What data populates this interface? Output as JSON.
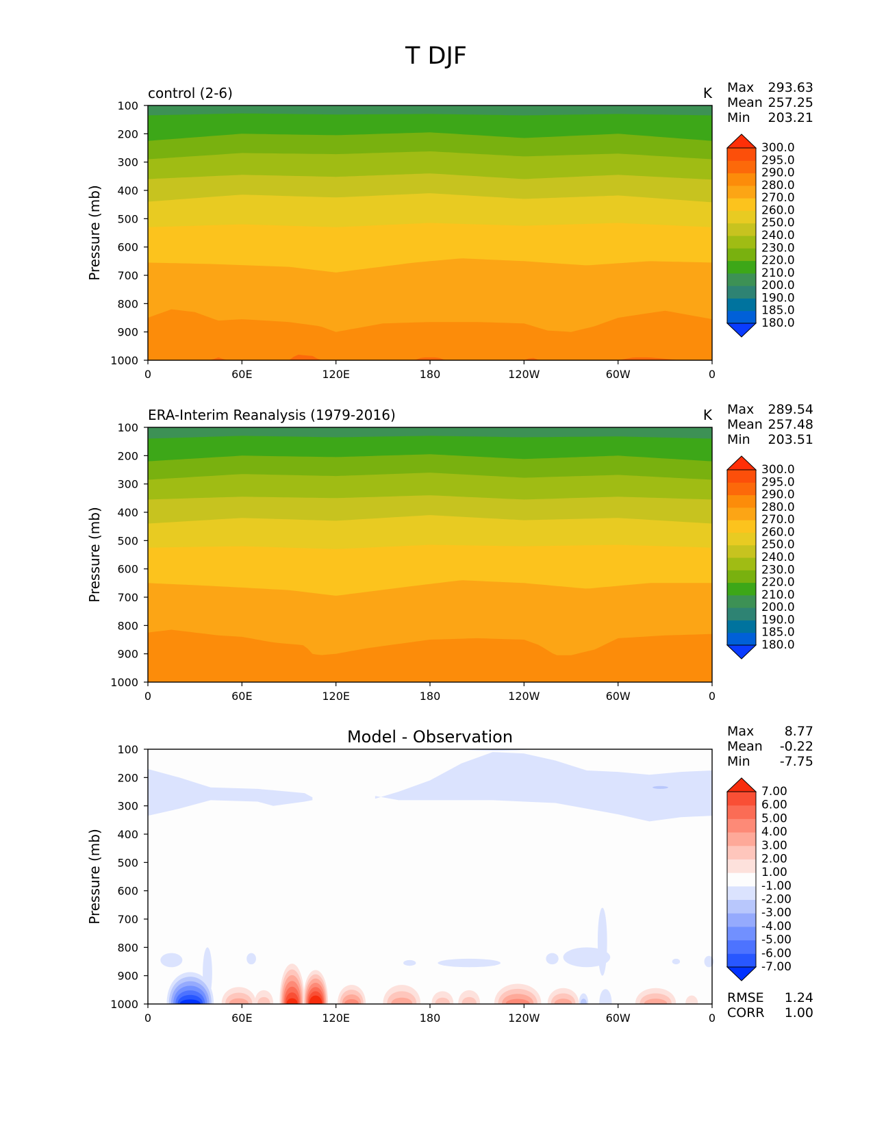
{
  "figure": {
    "title": "T DJF"
  },
  "colors": {
    "abs_levels": [
      "#0a3cfe",
      "#0060d8",
      "#00739e",
      "#2e8373",
      "#3d9155",
      "#3da718",
      "#79b10f",
      "#a0bc14",
      "#c7c31f",
      "#e8cb22",
      "#fcc31d",
      "#fca515",
      "#fc8c0a",
      "#fc690a",
      "#fc4f0a",
      "#ff2f08"
    ],
    "diff_levels": [
      "#0032ff",
      "#2857ff",
      "#4d73ff",
      "#7190ff",
      "#95aafd",
      "#b8c7fc",
      "#dbe3fe",
      "#fdfdfd",
      "#fde1dc",
      "#fec6bc",
      "#fea999",
      "#fd8a77",
      "#fb6c55",
      "#f94f35",
      "#f72c0c"
    ]
  },
  "chart_data": [
    {
      "type": "heatmap",
      "title": "control (2-6)",
      "units": "K",
      "xlabel": "",
      "ylabel": "Pressure (mb)",
      "xticks": [
        "0",
        "60E",
        "120E",
        "180",
        "120W",
        "60W",
        "0"
      ],
      "yticks": [
        "100",
        "200",
        "300",
        "400",
        "500",
        "600",
        "700",
        "800",
        "900",
        "1000"
      ],
      "xlim": [
        0,
        360
      ],
      "ylim": [
        1000,
        100
      ],
      "stats": {
        "max_label": "Max",
        "max": "293.63",
        "mean_label": "Mean",
        "mean": "257.25",
        "min_label": "Min",
        "min": "203.21"
      },
      "colorbar": {
        "extend": "both",
        "levels": [
          "180.0",
          "185.0",
          "190.0",
          "200.0",
          "210.0",
          "220.0",
          "230.0",
          "240.0",
          "250.0",
          "260.0",
          "270.0",
          "280.0",
          "290.0",
          "295.0",
          "300.0"
        ]
      },
      "contour_boundaries_mb": [
        {
          "level": 210,
          "x": [
            0,
            60,
            120,
            180,
            240,
            300,
            360
          ],
          "p": [
            135,
            128,
            132,
            130,
            135,
            130,
            135
          ]
        },
        {
          "level": 220,
          "x": [
            0,
            60,
            120,
            180,
            240,
            300,
            360
          ],
          "p": [
            225,
            200,
            205,
            195,
            215,
            200,
            225
          ]
        },
        {
          "level": 230,
          "x": [
            0,
            60,
            120,
            180,
            240,
            300,
            360
          ],
          "p": [
            290,
            268,
            272,
            262,
            280,
            270,
            290
          ]
        },
        {
          "level": 240,
          "x": [
            0,
            60,
            120,
            180,
            240,
            300,
            360
          ],
          "p": [
            360,
            345,
            352,
            340,
            360,
            345,
            362
          ]
        },
        {
          "level": 250,
          "x": [
            0,
            60,
            120,
            180,
            240,
            300,
            360
          ],
          "p": [
            440,
            415,
            425,
            410,
            430,
            418,
            442
          ]
        },
        {
          "level": 260,
          "x": [
            0,
            60,
            120,
            180,
            240,
            300,
            360
          ],
          "p": [
            530,
            520,
            530,
            515,
            525,
            515,
            530
          ]
        },
        {
          "level": 270,
          "x": [
            0,
            40,
            90,
            120,
            170,
            200,
            240,
            280,
            320,
            360
          ],
          "p": [
            655,
            660,
            670,
            690,
            655,
            640,
            650,
            665,
            650,
            655
          ]
        },
        {
          "level": 280,
          "x": [
            0,
            15,
            30,
            45,
            60,
            90,
            110,
            120,
            150,
            180,
            210,
            240,
            255,
            270,
            285,
            300,
            330,
            360
          ],
          "p": [
            850,
            820,
            830,
            860,
            855,
            865,
            880,
            900,
            870,
            865,
            865,
            870,
            895,
            900,
            880,
            850,
            825,
            855
          ]
        },
        {
          "level": 290,
          "x": [
            40,
            45,
            50,
            60,
            70,
            90,
            95,
            105,
            110,
            170,
            175,
            185,
            190,
            240,
            245,
            250,
            300,
            310,
            320,
            330,
            340
          ],
          "p": [
            1000,
            990,
            1000,
            1000,
            1000,
            1000,
            980,
            985,
            1000,
            1000,
            990,
            990,
            1000,
            1000,
            990,
            1000,
            1000,
            990,
            990,
            995,
            1000
          ]
        }
      ]
    },
    {
      "type": "heatmap",
      "title": "ERA-Interim Reanalysis (1979-2016)",
      "units": "K",
      "xlabel": "",
      "ylabel": "Pressure (mb)",
      "xticks": [
        "0",
        "60E",
        "120E",
        "180",
        "120W",
        "60W",
        "0"
      ],
      "yticks": [
        "100",
        "200",
        "300",
        "400",
        "500",
        "600",
        "700",
        "800",
        "900",
        "1000"
      ],
      "xlim": [
        0,
        360
      ],
      "ylim": [
        1000,
        100
      ],
      "stats": {
        "max_label": "Max",
        "max": "289.54",
        "mean_label": "Mean",
        "mean": "257.48",
        "min_label": "Min",
        "min": "203.51"
      },
      "colorbar": {
        "extend": "both",
        "levels": [
          "180.0",
          "185.0",
          "190.0",
          "200.0",
          "210.0",
          "220.0",
          "230.0",
          "240.0",
          "250.0",
          "260.0",
          "270.0",
          "280.0",
          "290.0",
          "295.0",
          "300.0"
        ]
      },
      "contour_boundaries_mb": [
        {
          "level": 210,
          "x": [
            0,
            60,
            120,
            180,
            240,
            300,
            360
          ],
          "p": [
            140,
            130,
            135,
            130,
            135,
            132,
            140
          ]
        },
        {
          "level": 220,
          "x": [
            0,
            60,
            120,
            180,
            240,
            300,
            360
          ],
          "p": [
            220,
            200,
            205,
            195,
            212,
            200,
            220
          ]
        },
        {
          "level": 230,
          "x": [
            0,
            60,
            120,
            180,
            240,
            300,
            360
          ],
          "p": [
            285,
            265,
            272,
            260,
            278,
            268,
            285
          ]
        },
        {
          "level": 240,
          "x": [
            0,
            60,
            120,
            180,
            240,
            300,
            360
          ],
          "p": [
            355,
            345,
            350,
            340,
            355,
            345,
            355
          ]
        },
        {
          "level": 250,
          "x": [
            0,
            60,
            120,
            180,
            240,
            300,
            360
          ],
          "p": [
            440,
            420,
            430,
            410,
            428,
            420,
            440
          ]
        },
        {
          "level": 260,
          "x": [
            0,
            60,
            120,
            180,
            240,
            300,
            360
          ],
          "p": [
            525,
            520,
            530,
            515,
            520,
            515,
            525
          ]
        },
        {
          "level": 270,
          "x": [
            0,
            40,
            90,
            120,
            170,
            200,
            240,
            280,
            320,
            360
          ],
          "p": [
            650,
            660,
            675,
            695,
            660,
            640,
            650,
            670,
            650,
            650
          ]
        },
        {
          "level": 280,
          "x": [
            0,
            15,
            30,
            45,
            60,
            80,
            100,
            105,
            110,
            120,
            140,
            180,
            210,
            240,
            250,
            260,
            270,
            285,
            300,
            330,
            360
          ],
          "p": [
            825,
            815,
            825,
            835,
            840,
            860,
            870,
            900,
            905,
            900,
            880,
            850,
            845,
            850,
            870,
            905,
            905,
            885,
            845,
            835,
            830
          ]
        }
      ]
    },
    {
      "type": "heatmap",
      "title": "Model - Observation",
      "units": "",
      "xlabel": "",
      "ylabel": "Pressure (mb)",
      "xticks": [
        "0",
        "60E",
        "120E",
        "180",
        "120W",
        "60W",
        "0"
      ],
      "yticks": [
        "100",
        "200",
        "300",
        "400",
        "500",
        "600",
        "700",
        "800",
        "900",
        "1000"
      ],
      "xlim": [
        0,
        360
      ],
      "ylim": [
        1000,
        100
      ],
      "stats": {
        "max_label": "Max",
        "max": "8.77",
        "mean_label": "Mean",
        "mean": "-0.22",
        "min_label": "Min",
        "min": "-7.75",
        "rmse_label": "RMSE",
        "rmse": "1.24",
        "corr_label": "CORR",
        "corr": "1.00"
      },
      "colorbar": {
        "extend": "both",
        "levels": [
          "-7.00",
          "-6.00",
          "-5.00",
          "-4.00",
          "-3.00",
          "-2.00",
          "-1.00",
          "1.00",
          "2.00",
          "3.00",
          "4.00",
          "5.00",
          "6.00",
          "7.00"
        ]
      },
      "upper_negative_region": {
        "level": -1.0,
        "west": {
          "x": [
            0,
            20,
            40,
            70,
            80,
            100,
            105
          ],
          "top_p": [
            170,
            200,
            235,
            240,
            245,
            255,
            270
          ],
          "bottom_p": [
            335,
            310,
            280,
            285,
            300,
            285,
            280
          ]
        },
        "east": {
          "x": [
            145,
            160,
            180,
            200,
            220,
            240,
            260,
            280,
            300,
            320,
            340,
            360
          ],
          "top_p": [
            275,
            250,
            210,
            150,
            110,
            115,
            140,
            175,
            180,
            190,
            180,
            175
          ],
          "bottom_p": [
            265,
            280,
            280,
            280,
            280,
            285,
            290,
            310,
            330,
            355,
            340,
            335
          ]
        },
        "top_strip": {
          "x": [
            195,
            225,
            245
          ],
          "p": [
            100,
            110,
            100
          ]
        },
        "small_patch": {
          "x": [
            322,
            332
          ],
          "p": [
            230,
            240
          ]
        }
      },
      "surface_anomalies": [
        {
          "x_center": 27,
          "width": 30,
          "top_p": 850,
          "peak": -7.5
        },
        {
          "x_center": 58,
          "width": 22,
          "top_p": 920,
          "peak": 3.5
        },
        {
          "x_center": 74,
          "width": 12,
          "top_p": 935,
          "peak": 2.5
        },
        {
          "x_center": 92,
          "width": 16,
          "top_p": 810,
          "peak": 7.5
        },
        {
          "x_center": 107,
          "width": 16,
          "top_p": 840,
          "peak": 8.5
        },
        {
          "x_center": 130,
          "width": 18,
          "top_p": 910,
          "peak": 4.0
        },
        {
          "x_center": 162,
          "width": 24,
          "top_p": 910,
          "peak": 3.5
        },
        {
          "x_center": 188,
          "width": 14,
          "top_p": 940,
          "peak": 2.0
        },
        {
          "x_center": 205,
          "width": 14,
          "top_p": 935,
          "peak": 2.0
        },
        {
          "x_center": 236,
          "width": 30,
          "top_p": 905,
          "peak": 4.5
        },
        {
          "x_center": 265,
          "width": 20,
          "top_p": 925,
          "peak": 3.5
        },
        {
          "x_center": 278,
          "width": 6,
          "top_p": 950,
          "peak": -2.0
        },
        {
          "x_center": 292,
          "width": 8,
          "top_p": 930,
          "peak": -1.5
        },
        {
          "x_center": 324,
          "width": 26,
          "top_p": 925,
          "peak": 3.5
        },
        {
          "x_center": 347,
          "width": 8,
          "top_p": 960,
          "peak": 1.5
        }
      ],
      "midlevel_negative_patches": [
        {
          "x_center": 15,
          "width": 14,
          "top_p": 820,
          "bottom_p": 870
        },
        {
          "x_center": 38,
          "width": 6,
          "top_p": 800,
          "bottom_p": 980
        },
        {
          "x_center": 66,
          "width": 6,
          "top_p": 820,
          "bottom_p": 860
        },
        {
          "x_center": 167,
          "width": 8,
          "top_p": 845,
          "bottom_p": 865
        },
        {
          "x_center": 205,
          "width": 40,
          "top_p": 840,
          "bottom_p": 870
        },
        {
          "x_center": 258,
          "width": 8,
          "top_p": 820,
          "bottom_p": 860
        },
        {
          "x_center": 280,
          "width": 30,
          "top_p": 800,
          "bottom_p": 870
        },
        {
          "x_center": 290,
          "width": 6,
          "top_p": 660,
          "bottom_p": 900
        },
        {
          "x_center": 337,
          "width": 5,
          "top_p": 840,
          "bottom_p": 860
        },
        {
          "x_center": 358,
          "width": 6,
          "top_p": 830,
          "bottom_p": 870
        }
      ]
    }
  ]
}
